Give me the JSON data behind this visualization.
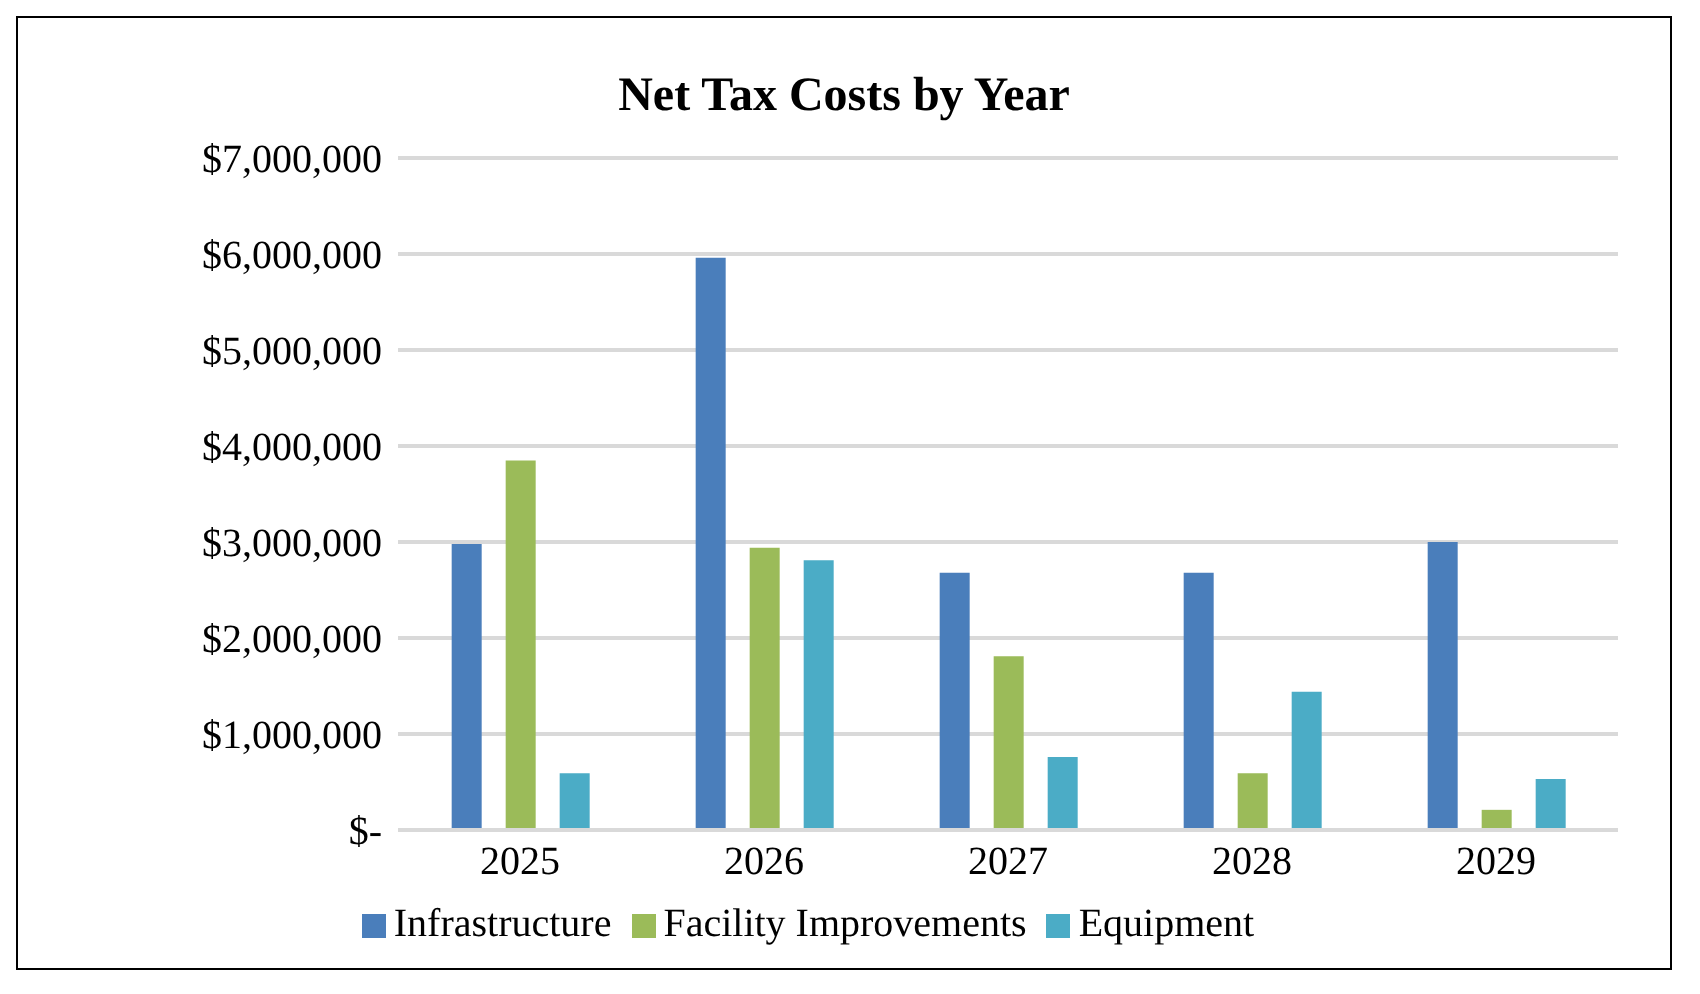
{
  "chart_data": {
    "type": "bar",
    "title": "Net Tax Costs by Year",
    "categories": [
      "2025",
      "2026",
      "2027",
      "2028",
      "2029"
    ],
    "series": [
      {
        "name": "Infrastructure",
        "color": "#4a7ebb",
        "values": [
          2980000,
          5960000,
          2680000,
          2680000,
          3000000
        ]
      },
      {
        "name": "Facility Improvements",
        "color": "#9bbb59",
        "values": [
          3850000,
          2940000,
          1810000,
          590000,
          210000
        ]
      },
      {
        "name": "Equipment",
        "color": "#4bacc6",
        "values": [
          590000,
          2810000,
          760000,
          1440000,
          530000
        ]
      }
    ],
    "ylim": [
      0,
      7000000
    ],
    "yticks": [
      {
        "value": 0,
        "label": "$-"
      },
      {
        "value": 1000000,
        "label": "$1,000,000"
      },
      {
        "value": 2000000,
        "label": "$2,000,000"
      },
      {
        "value": 3000000,
        "label": "$3,000,000"
      },
      {
        "value": 4000000,
        "label": "$4,000,000"
      },
      {
        "value": 5000000,
        "label": "$5,000,000"
      },
      {
        "value": 6000000,
        "label": "$6,000,000"
      },
      {
        "value": 7000000,
        "label": "$7,000,000"
      }
    ],
    "grid": "y",
    "legend": "bottom"
  }
}
